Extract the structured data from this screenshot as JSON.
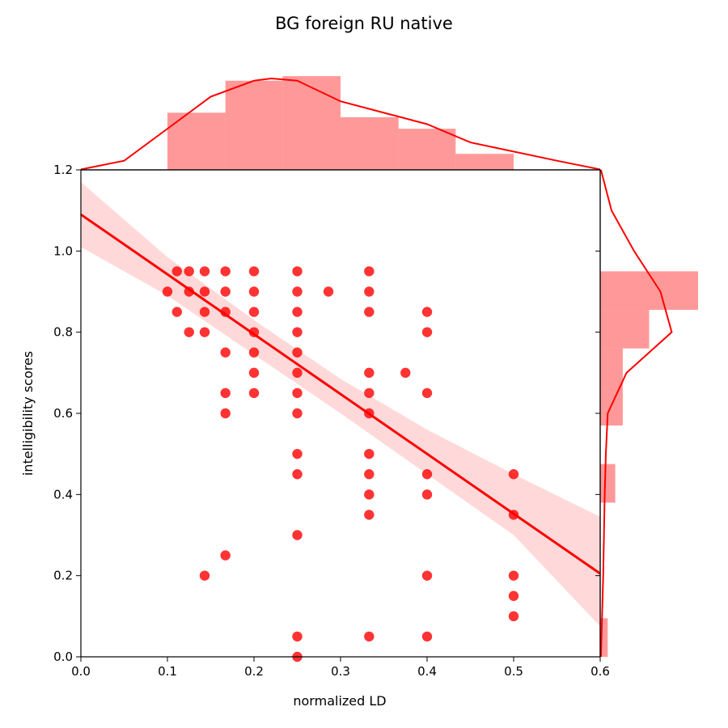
{
  "chart_data": {
    "type": "scatter",
    "title": "BG foreign RU native",
    "xlabel": "normalized LD",
    "ylabel": "intelligibility scores",
    "xlim": [
      0.0,
      0.6
    ],
    "ylim": [
      0.0,
      1.2
    ],
    "xticks": [
      "0.0",
      "0.1",
      "0.2",
      "0.3",
      "0.4",
      "0.5",
      "0.6"
    ],
    "yticks": [
      "0.0",
      "0.2",
      "0.4",
      "0.6",
      "0.8",
      "1.0",
      "1.2"
    ],
    "color": "#ff0000",
    "points": [
      {
        "x": 0.1,
        "y": 0.9
      },
      {
        "x": 0.111,
        "y": 0.95
      },
      {
        "x": 0.111,
        "y": 0.85
      },
      {
        "x": 0.125,
        "y": 0.95
      },
      {
        "x": 0.125,
        "y": 0.9
      },
      {
        "x": 0.125,
        "y": 0.8
      },
      {
        "x": 0.143,
        "y": 0.95
      },
      {
        "x": 0.143,
        "y": 0.9
      },
      {
        "x": 0.143,
        "y": 0.85
      },
      {
        "x": 0.143,
        "y": 0.8
      },
      {
        "x": 0.143,
        "y": 0.2
      },
      {
        "x": 0.167,
        "y": 0.95
      },
      {
        "x": 0.167,
        "y": 0.9
      },
      {
        "x": 0.167,
        "y": 0.85
      },
      {
        "x": 0.167,
        "y": 0.75
      },
      {
        "x": 0.167,
        "y": 0.65
      },
      {
        "x": 0.167,
        "y": 0.6
      },
      {
        "x": 0.167,
        "y": 0.25
      },
      {
        "x": 0.2,
        "y": 0.95
      },
      {
        "x": 0.2,
        "y": 0.9
      },
      {
        "x": 0.2,
        "y": 0.85
      },
      {
        "x": 0.2,
        "y": 0.8
      },
      {
        "x": 0.2,
        "y": 0.75
      },
      {
        "x": 0.2,
        "y": 0.7
      },
      {
        "x": 0.2,
        "y": 0.65
      },
      {
        "x": 0.25,
        "y": 0.95
      },
      {
        "x": 0.25,
        "y": 0.9
      },
      {
        "x": 0.25,
        "y": 0.85
      },
      {
        "x": 0.25,
        "y": 0.8
      },
      {
        "x": 0.25,
        "y": 0.75
      },
      {
        "x": 0.25,
        "y": 0.7
      },
      {
        "x": 0.25,
        "y": 0.65
      },
      {
        "x": 0.25,
        "y": 0.6
      },
      {
        "x": 0.25,
        "y": 0.5
      },
      {
        "x": 0.25,
        "y": 0.45
      },
      {
        "x": 0.25,
        "y": 0.3
      },
      {
        "x": 0.25,
        "y": 0.05
      },
      {
        "x": 0.25,
        "y": 0.0
      },
      {
        "x": 0.286,
        "y": 0.9
      },
      {
        "x": 0.333,
        "y": 0.95
      },
      {
        "x": 0.333,
        "y": 0.9
      },
      {
        "x": 0.333,
        "y": 0.85
      },
      {
        "x": 0.333,
        "y": 0.7
      },
      {
        "x": 0.333,
        "y": 0.65
      },
      {
        "x": 0.333,
        "y": 0.6
      },
      {
        "x": 0.333,
        "y": 0.5
      },
      {
        "x": 0.333,
        "y": 0.45
      },
      {
        "x": 0.333,
        "y": 0.4
      },
      {
        "x": 0.333,
        "y": 0.35
      },
      {
        "x": 0.333,
        "y": 0.05
      },
      {
        "x": 0.375,
        "y": 0.7
      },
      {
        "x": 0.4,
        "y": 0.85
      },
      {
        "x": 0.4,
        "y": 0.8
      },
      {
        "x": 0.4,
        "y": 0.65
      },
      {
        "x": 0.4,
        "y": 0.45
      },
      {
        "x": 0.4,
        "y": 0.4
      },
      {
        "x": 0.4,
        "y": 0.2
      },
      {
        "x": 0.4,
        "y": 0.05
      },
      {
        "x": 0.5,
        "y": 0.45
      },
      {
        "x": 0.5,
        "y": 0.35
      },
      {
        "x": 0.5,
        "y": 0.2
      },
      {
        "x": 0.5,
        "y": 0.15
      },
      {
        "x": 0.5,
        "y": 0.1
      }
    ],
    "regression": {
      "line": [
        [
          0.0,
          1.09
        ],
        [
          0.6,
          0.205
        ]
      ],
      "ci_upper": [
        [
          0.0,
          1.17
        ],
        [
          0.1,
          0.985
        ],
        [
          0.2,
          0.83
        ],
        [
          0.3,
          0.685
        ],
        [
          0.4,
          0.56
        ],
        [
          0.5,
          0.45
        ],
        [
          0.6,
          0.345
        ]
      ],
      "ci_lower": [
        [
          0.0,
          1.01
        ],
        [
          0.1,
          0.89
        ],
        [
          0.2,
          0.745
        ],
        [
          0.3,
          0.6
        ],
        [
          0.4,
          0.45
        ],
        [
          0.5,
          0.3
        ],
        [
          0.6,
          0.075
        ]
      ]
    },
    "x_histogram": {
      "bins": [
        [
          0.1,
          0.167
        ],
        [
          0.167,
          0.233
        ],
        [
          0.233,
          0.3
        ],
        [
          0.3,
          0.367
        ],
        [
          0.367,
          0.433
        ],
        [
          0.433,
          0.5
        ]
      ],
      "density": [
        2.5,
        3.9,
        4.1,
        2.3,
        1.8,
        0.7
      ],
      "kde": [
        [
          0.0,
          0.02
        ],
        [
          0.05,
          0.4
        ],
        [
          0.1,
          1.8
        ],
        [
          0.15,
          3.2
        ],
        [
          0.2,
          3.9
        ],
        [
          0.22,
          4.0
        ],
        [
          0.25,
          3.9
        ],
        [
          0.3,
          3.0
        ],
        [
          0.35,
          2.5
        ],
        [
          0.4,
          2.0
        ],
        [
          0.45,
          1.2
        ],
        [
          0.5,
          0.8
        ],
        [
          0.55,
          0.4
        ],
        [
          0.6,
          0.02
        ]
      ]
    },
    "y_histogram": {
      "bins": [
        [
          0.0,
          0.095
        ],
        [
          0.095,
          0.19
        ],
        [
          0.19,
          0.285
        ],
        [
          0.285,
          0.38
        ],
        [
          0.38,
          0.475
        ],
        [
          0.475,
          0.57
        ],
        [
          0.57,
          0.665
        ],
        [
          0.665,
          0.76
        ],
        [
          0.76,
          0.855
        ],
        [
          0.855,
          0.95
        ]
      ],
      "density": [
        0.2,
        0.0,
        0.0,
        0.0,
        0.4,
        0.0,
        0.6,
        0.6,
        1.3,
        2.6
      ],
      "kde": [
        [
          0.0,
          0.02
        ],
        [
          0.1,
          0.05
        ],
        [
          0.2,
          0.08
        ],
        [
          0.3,
          0.1
        ],
        [
          0.4,
          0.12
        ],
        [
          0.5,
          0.15
        ],
        [
          0.6,
          0.2
        ],
        [
          0.7,
          0.7
        ],
        [
          0.8,
          1.9
        ],
        [
          0.9,
          1.6
        ],
        [
          1.0,
          0.9
        ],
        [
          1.1,
          0.3
        ],
        [
          1.2,
          0.02
        ]
      ]
    }
  }
}
